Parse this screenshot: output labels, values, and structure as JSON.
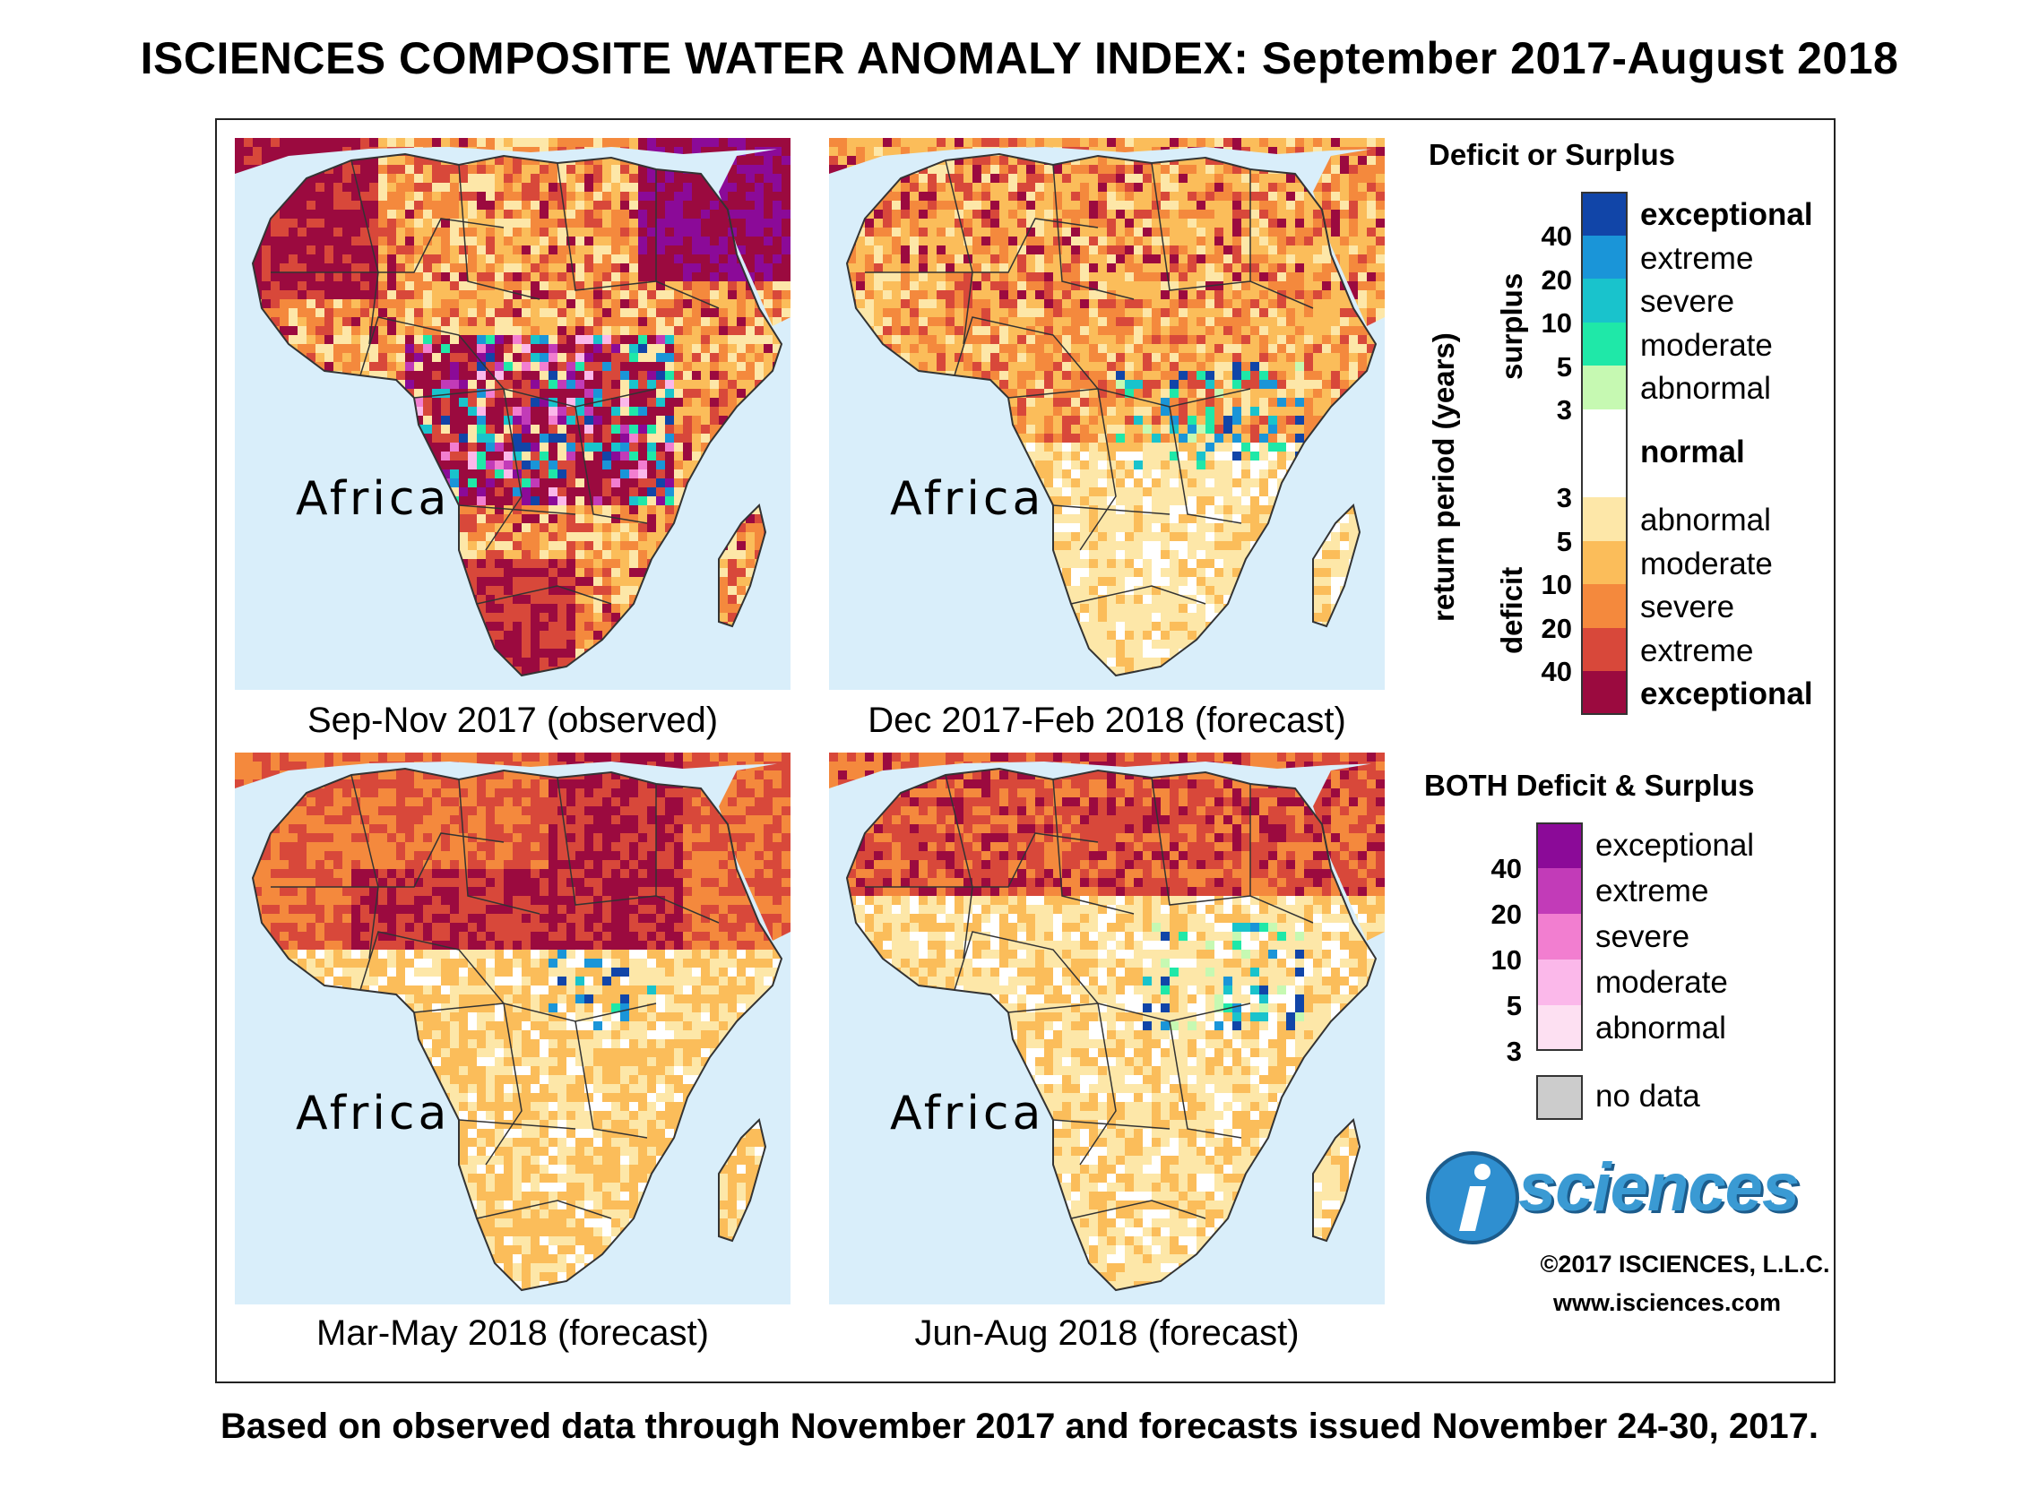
{
  "title": "ISCIENCES COMPOSITE WATER ANOMALY INDEX: September 2017-August 2018",
  "footer": "Based on observed data through November 2017 and forecasts issued November 24-30, 2017.",
  "map_label": "Africa",
  "panels": [
    {
      "caption": "Sep-Nov 2017 (observed)",
      "scenario": "wet-mixed"
    },
    {
      "caption": "Dec 2017-Feb 2018 (forecast)",
      "scenario": "moderate"
    },
    {
      "caption": "Mar-May 2018 (forecast)",
      "scenario": "sahara-deficit"
    },
    {
      "caption": "Jun-Aug 2018 (forecast)",
      "scenario": "mild"
    }
  ],
  "colors": {
    "ocean": "#d9eefa",
    "border": "#333333",
    "land_base": "#fde7a8"
  },
  "legend": {
    "heading": "Deficit or Surplus",
    "axis_label": "return period (years)",
    "surplus_label": "surplus",
    "deficit_label": "deficit",
    "normal_label": "normal",
    "surplus": [
      {
        "label": "exceptional",
        "color": "#1145a8",
        "bold": true
      },
      {
        "label": "extreme",
        "color": "#1a95d8",
        "bold": false
      },
      {
        "label": "severe",
        "color": "#19c3cc",
        "bold": false
      },
      {
        "label": "moderate",
        "color": "#1fe8a8",
        "bold": false
      },
      {
        "label": "abnormal",
        "color": "#c6f9b2",
        "bold": false
      }
    ],
    "surplus_ticks": [
      "40",
      "20",
      "10",
      "5",
      "3"
    ],
    "deficit": [
      {
        "label": "abnormal",
        "color": "#fde7a8",
        "bold": false
      },
      {
        "label": "moderate",
        "color": "#fbbd5a",
        "bold": false
      },
      {
        "label": "severe",
        "color": "#f4893d",
        "bold": false
      },
      {
        "label": "extreme",
        "color": "#d8483a",
        "bold": false
      },
      {
        "label": "exceptional",
        "color": "#9b0a3f",
        "bold": true
      }
    ],
    "deficit_ticks": [
      "3",
      "5",
      "10",
      "20",
      "40"
    ],
    "both_heading": "BOTH Deficit & Surplus",
    "both": [
      {
        "label": "exceptional",
        "color": "#8b0a98"
      },
      {
        "label": "extreme",
        "color": "#c23bb8"
      },
      {
        "label": "severe",
        "color": "#f27ed0"
      },
      {
        "label": "moderate",
        "color": "#fbb8ea"
      },
      {
        "label": "abnormal",
        "color": "#fde0f2"
      }
    ],
    "both_ticks": [
      "40",
      "20",
      "10",
      "5",
      "3"
    ],
    "nodata_label": "no data",
    "nodata_color": "#cccccc"
  },
  "logo": {
    "text": "sciences",
    "copyright": "©2017 ISCIENCES, L.L.C.",
    "url": "www.isciences.com"
  }
}
